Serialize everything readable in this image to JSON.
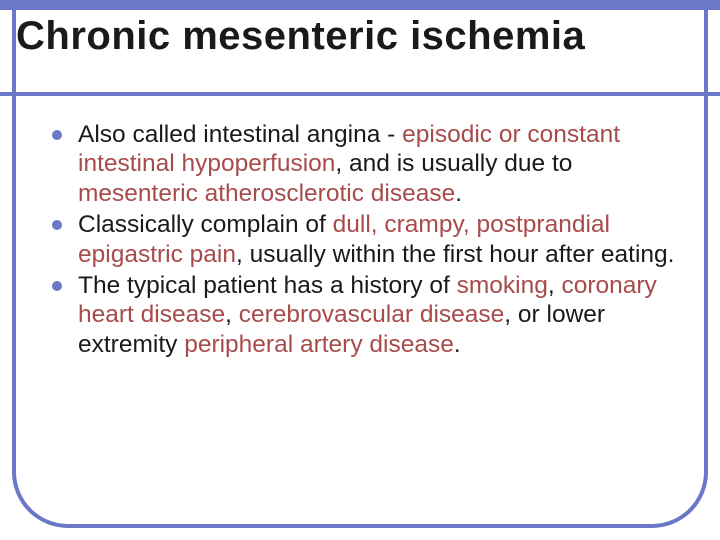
{
  "slide": {
    "title": "Chronic mesenteric ischemia",
    "title_color": "#1a1a1a",
    "title_fontsize": 40,
    "band_color": "#6b77c7",
    "band_height": 96,
    "frame_border_color": "#6b77c7",
    "frame_border_width": 4,
    "frame_radius": 56,
    "background_color": "#ffffff",
    "bullet_color": "#6b77c7",
    "text_color": "#1a1a1a",
    "highlight_color": "#a84b4b",
    "body_fontsize": 24.5,
    "bullets": [
      {
        "segments": [
          {
            "t": "Also called intestinal angina - ",
            "hl": false
          },
          {
            "t": "episodic or constant intestinal hypoperfusion",
            "hl": true
          },
          {
            "t": ", and is usually due to ",
            "hl": false
          },
          {
            "t": "mesenteric atherosclerotic disease",
            "hl": true
          },
          {
            "t": ".",
            "hl": false
          }
        ]
      },
      {
        "segments": [
          {
            "t": "Classically complain of ",
            "hl": false
          },
          {
            "t": "dull, crampy, postprandial epigastric pain",
            "hl": true
          },
          {
            "t": ", usually within the first hour after eating.",
            "hl": false
          }
        ]
      },
      {
        "segments": [
          {
            "t": "The typical patient has a history of ",
            "hl": false
          },
          {
            "t": "smoking",
            "hl": true
          },
          {
            "t": ", ",
            "hl": false
          },
          {
            "t": "coronary heart disease",
            "hl": true
          },
          {
            "t": ", ",
            "hl": false
          },
          {
            "t": "cerebrovascular disease",
            "hl": true
          },
          {
            "t": ", or lower extremity ",
            "hl": false
          },
          {
            "t": "peripheral artery disease",
            "hl": true
          },
          {
            "t": ".",
            "hl": false
          }
        ]
      }
    ]
  }
}
